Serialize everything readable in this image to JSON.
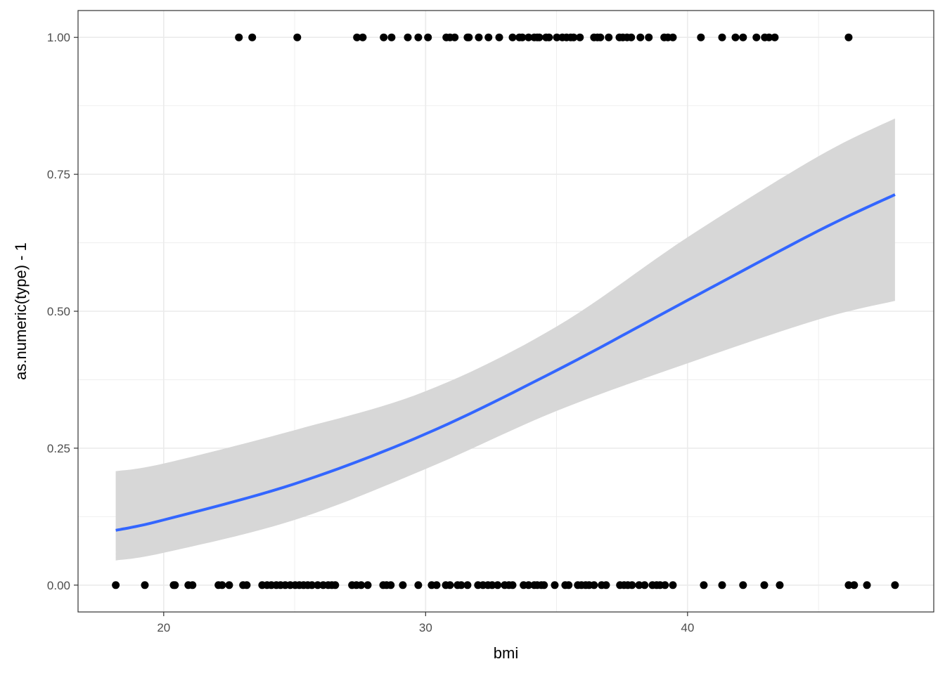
{
  "chart_data": {
    "type": "scatter",
    "xlabel": "bmi",
    "ylabel": "as.numeric(type) - 1",
    "xlim": [
      16.73,
      49.4
    ],
    "ylim": [
      -0.049,
      1.049
    ],
    "xticks": [
      20,
      30,
      40
    ],
    "xtick_labels": [
      "20",
      "30",
      "40"
    ],
    "yticks": [
      0,
      0.25,
      0.5,
      0.75,
      1
    ],
    "ytick_labels": [
      "0.00",
      "0.25",
      "0.50",
      "0.75",
      "1.00"
    ],
    "grid": true,
    "theme": "bw",
    "colors": {
      "points": "#000000",
      "fit_line": "#3366FF",
      "ribbon": "#D6D6D6",
      "grid": "#EBEBEB",
      "panel_border": "#333333"
    },
    "points_y1_x": [
      22.87,
      23.38,
      25.1,
      27.38,
      27.6,
      28.4,
      28.7,
      29.32,
      29.72,
      30.09,
      30.79,
      30.93,
      31.11,
      31.6,
      31.65,
      32.03,
      32.4,
      32.81,
      33.32,
      33.58,
      33.69,
      33.93,
      34.15,
      34.26,
      34.34,
      34.6,
      34.71,
      35.01,
      35.22,
      35.38,
      35.54,
      35.65,
      35.89,
      36.43,
      36.56,
      36.67,
      36.99,
      37.4,
      37.53,
      37.69,
      37.85,
      38.2,
      38.52,
      39.11,
      39.25,
      39.44,
      40.51,
      41.32,
      41.83,
      42.12,
      42.63,
      42.95,
      43.11,
      43.33,
      46.15
    ],
    "points_y0_x": [
      18.17,
      19.28,
      20.38,
      20.43,
      20.94,
      21.1,
      22.09,
      22.23,
      22.5,
      23.03,
      23.17,
      23.76,
      23.95,
      24.11,
      24.3,
      24.46,
      24.64,
      24.83,
      25.02,
      25.18,
      25.34,
      25.5,
      25.66,
      25.88,
      26.09,
      26.28,
      26.42,
      26.55,
      27.19,
      27.36,
      27.54,
      27.79,
      28.38,
      28.51,
      28.67,
      29.13,
      29.72,
      30.23,
      30.42,
      30.77,
      30.93,
      31.22,
      31.36,
      31.6,
      32.0,
      32.19,
      32.38,
      32.54,
      32.75,
      33.02,
      33.18,
      33.32,
      33.74,
      33.93,
      34.15,
      34.26,
      34.42,
      34.52,
      34.93,
      35.33,
      35.46,
      35.81,
      35.95,
      36.11,
      36.24,
      36.43,
      36.72,
      36.89,
      37.42,
      37.58,
      37.72,
      37.88,
      38.15,
      38.36,
      38.66,
      38.82,
      38.95,
      39.14,
      39.44,
      40.62,
      41.32,
      42.12,
      42.93,
      43.52,
      46.15,
      46.36,
      46.85,
      47.92
    ],
    "fit": {
      "method": "logistic",
      "x": [
        18.17,
        20,
        25,
        30,
        35,
        40,
        45,
        47.92
      ],
      "y": [
        0.1,
        0.119,
        0.185,
        0.276,
        0.392,
        0.52,
        0.647,
        0.713
      ],
      "lower": [
        0.045,
        0.059,
        0.119,
        0.212,
        0.318,
        0.405,
        0.485,
        0.519
      ],
      "upper": [
        0.208,
        0.222,
        0.283,
        0.354,
        0.472,
        0.635,
        0.783,
        0.852
      ]
    }
  }
}
